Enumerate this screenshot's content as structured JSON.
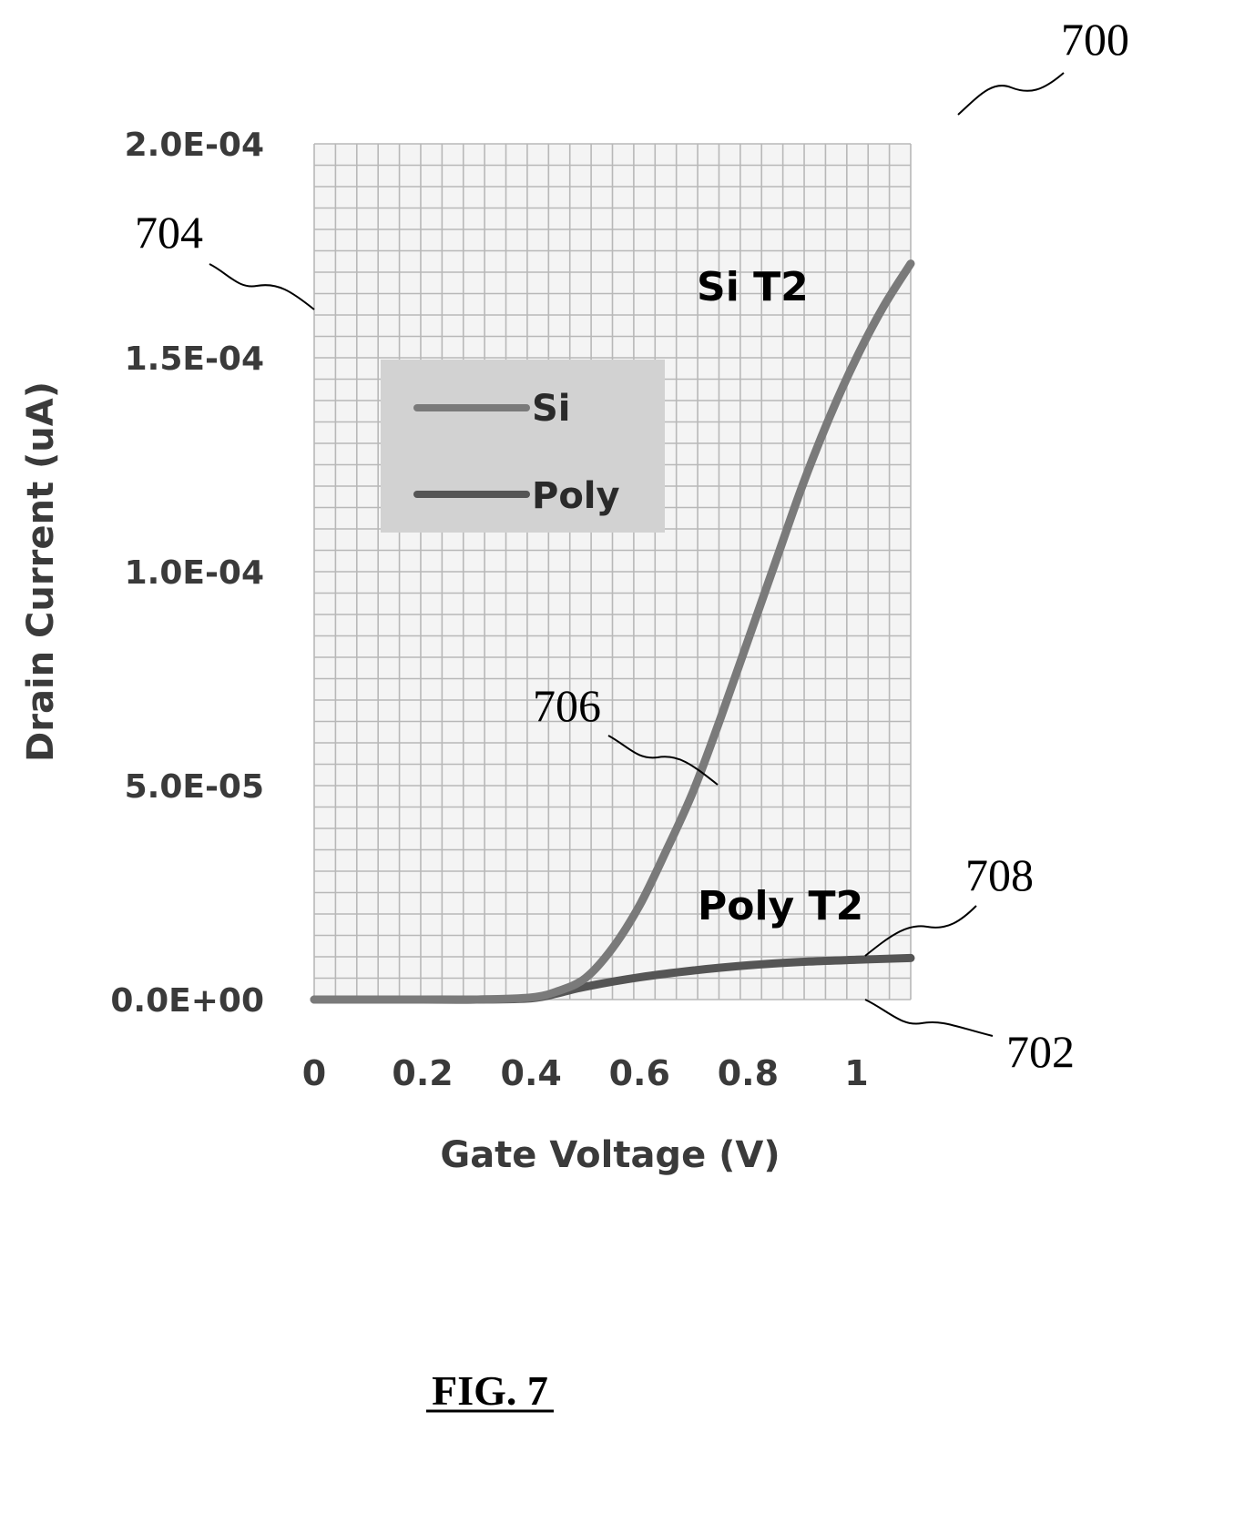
{
  "figure_label": "FIG. 7",
  "reference_numerals": {
    "figure": "700",
    "y_axis": "704",
    "si_curve": "706",
    "poly_curve": "708",
    "x_axis": "702"
  },
  "annotations": {
    "si_label": "Si T2",
    "poly_label": "Poly T2"
  },
  "colors": {
    "si_series": "#7a7a7a",
    "poly_series": "#555555",
    "grid": "#b8b8b8",
    "legend_box": "#d2d2d2"
  },
  "chart_data": {
    "type": "line",
    "title": "",
    "xlabel": "Gate Voltage (V)",
    "ylabel": "Drain Current (uA)",
    "xlim": [
      0,
      1.1
    ],
    "ylim": [
      0,
      0.0002
    ],
    "xticks": [
      "0",
      "0.2",
      "0.4",
      "0.6",
      "0.8",
      "1"
    ],
    "xtick_values": [
      0,
      0.2,
      0.4,
      0.6,
      0.8,
      1.0
    ],
    "yticks": [
      "0.0E+00",
      "5.0E-05",
      "1.0E-04",
      "1.5E-04",
      "2.0E-04"
    ],
    "ytick_values": [
      0,
      5e-05,
      0.0001,
      0.00015,
      0.0002
    ],
    "grid": true,
    "legend_position": "upper-left",
    "series": [
      {
        "name": "Si",
        "x": [
          0,
          0.1,
          0.2,
          0.3,
          0.4,
          0.45,
          0.5,
          0.55,
          0.6,
          0.65,
          0.7,
          0.75,
          0.8,
          0.85,
          0.9,
          0.95,
          1.0,
          1.05,
          1.1
        ],
        "y": [
          0,
          0,
          0,
          0,
          5e-07,
          2e-06,
          5e-06,
          1.2e-05,
          2.2e-05,
          3.5e-05,
          4.9e-05,
          6.6e-05,
          8.4e-05,
          0.000102,
          0.00012,
          0.000136,
          0.00015,
          0.000162,
          0.000172
        ]
      },
      {
        "name": "Poly",
        "x": [
          0,
          0.1,
          0.2,
          0.3,
          0.4,
          0.45,
          0.5,
          0.6,
          0.7,
          0.8,
          0.9,
          1.0,
          1.1
        ],
        "y": [
          0,
          0,
          0,
          0,
          3e-07,
          1.5e-06,
          3e-06,
          5.2e-06,
          6.8e-06,
          8e-06,
          8.8e-06,
          9.3e-06,
          9.7e-06
        ]
      }
    ]
  }
}
